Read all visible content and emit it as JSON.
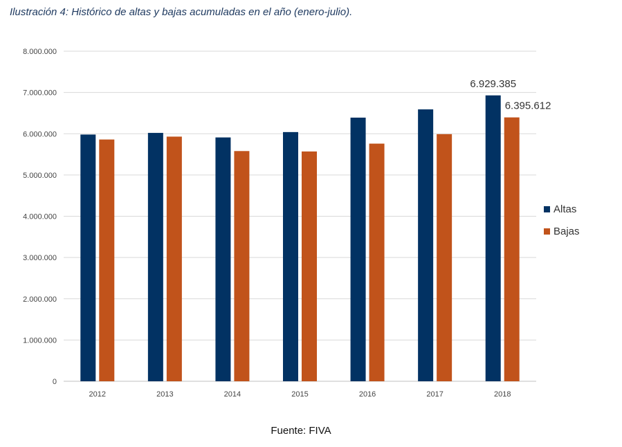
{
  "caption": "Ilustración 4: Histórico de altas y bajas acumuladas en el año (enero-julio).",
  "source": "Fuente: FIVA",
  "colors": {
    "altas": "#023263",
    "bajas": "#c1531b",
    "grid": "#d9d9d9",
    "axis": "#bfbfbf",
    "tick_text": "#444444"
  },
  "chart_data": {
    "type": "bar",
    "categories": [
      "2012",
      "2013",
      "2014",
      "2015",
      "2016",
      "2017",
      "2018"
    ],
    "series": [
      {
        "name": "Altas",
        "values": [
          5980000,
          6020000,
          5910000,
          6040000,
          6390000,
          6590000,
          6929385
        ]
      },
      {
        "name": "Bajas",
        "values": [
          5860000,
          5930000,
          5580000,
          5570000,
          5760000,
          5990000,
          6395612
        ]
      }
    ],
    "ylim": [
      0,
      8000000
    ],
    "yticks": [
      0,
      1000000,
      2000000,
      3000000,
      4000000,
      5000000,
      6000000,
      7000000,
      8000000
    ],
    "ytick_labels": [
      "0",
      "1.000.000",
      "2.000.000",
      "3.000.000",
      "4.000.000",
      "5.000.000",
      "6.000.000",
      "7.000.000",
      "8.000.000"
    ],
    "data_labels": [
      {
        "series": 0,
        "index": 6,
        "text": "6.929.385"
      },
      {
        "series": 1,
        "index": 6,
        "text": "6.395.612"
      }
    ],
    "grid": true,
    "legend": "right",
    "xlabel": "",
    "ylabel": ""
  }
}
